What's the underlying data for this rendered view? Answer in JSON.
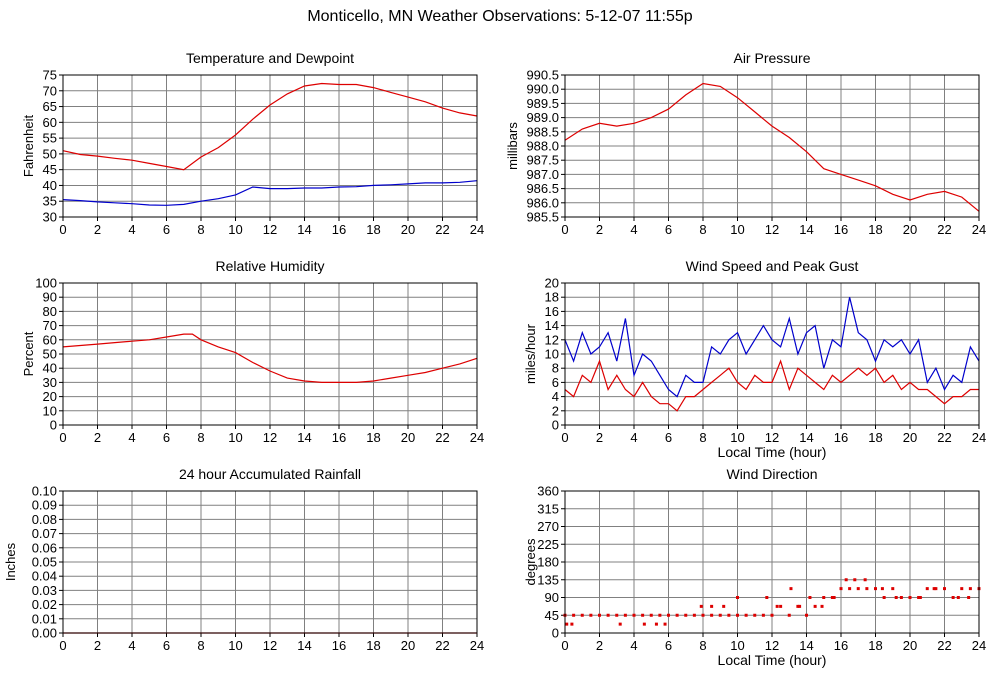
{
  "page": {
    "title": "Monticello, MN Weather Observations: 5-12-07 11:55p"
  },
  "colors": {
    "primary_series": "#dd0000",
    "secondary_series": "#0000cc",
    "grid": "#808080",
    "frame": "#000000"
  },
  "chart_data": [
    {
      "id": "temperature",
      "type": "line",
      "title": "Temperature and Dewpoint",
      "xlabel": "",
      "ylabel": "Fahrenheit",
      "xlim": [
        0,
        24
      ],
      "ylim": [
        30,
        75
      ],
      "xticks": [
        "0",
        "2",
        "4",
        "6",
        "8",
        "10",
        "12",
        "14",
        "16",
        "18",
        "20",
        "22",
        "24"
      ],
      "yticks": [
        "30",
        "35",
        "40",
        "45",
        "50",
        "55",
        "60",
        "65",
        "70",
        "75"
      ],
      "grid": true,
      "series": [
        {
          "color": "#dd0000",
          "x": [
            0,
            1,
            2,
            3,
            4,
            5,
            6,
            7,
            8,
            9,
            10,
            11,
            12,
            13,
            14,
            15,
            16,
            17,
            18,
            19,
            20,
            21,
            22,
            23,
            24
          ],
          "y": [
            51,
            49.8,
            49.3,
            48.6,
            48,
            47,
            46,
            45,
            49,
            52,
            56,
            61,
            65.5,
            69,
            71.5,
            72.3,
            72,
            72,
            71,
            69.5,
            68,
            66.5,
            64.5,
            63,
            62
          ]
        },
        {
          "color": "#0000cc",
          "x": [
            0,
            1,
            2,
            3,
            4,
            5,
            6,
            7,
            8,
            9,
            10,
            11,
            12,
            13,
            14,
            15,
            16,
            17,
            18,
            19,
            20,
            21,
            22,
            23,
            24
          ],
          "y": [
            35.5,
            35.2,
            34.8,
            34.5,
            34.2,
            33.8,
            33.7,
            34,
            35,
            35.8,
            37,
            39.5,
            39,
            39,
            39.2,
            39.2,
            39.5,
            39.6,
            40,
            40.2,
            40.5,
            40.8,
            40.8,
            41,
            41.5
          ]
        }
      ]
    },
    {
      "id": "pressure",
      "type": "line",
      "title": "Air Pressure",
      "xlabel": "",
      "ylabel": "millibars",
      "xlim": [
        0,
        24
      ],
      "ylim": [
        985.5,
        990.5
      ],
      "xticks": [
        "0",
        "2",
        "4",
        "6",
        "8",
        "10",
        "12",
        "14",
        "16",
        "18",
        "20",
        "22",
        "24"
      ],
      "yticks": [
        "985.5",
        "986.0",
        "986.5",
        "987.0",
        "987.5",
        "988.0",
        "988.5",
        "989.0",
        "989.5",
        "990.0",
        "990.5"
      ],
      "grid": true,
      "series": [
        {
          "color": "#dd0000",
          "x": [
            0,
            1,
            2,
            3,
            4,
            5,
            6,
            7,
            8,
            9,
            10,
            11,
            12,
            13,
            14,
            15,
            16,
            17,
            18,
            19,
            20,
            21,
            22,
            23,
            24
          ],
          "y": [
            988.2,
            988.6,
            988.8,
            988.7,
            988.8,
            989.0,
            989.3,
            989.8,
            990.2,
            990.1,
            989.7,
            989.2,
            988.7,
            988.3,
            987.8,
            987.2,
            987.0,
            986.8,
            986.6,
            986.3,
            986.1,
            986.3,
            986.4,
            986.2,
            985.7
          ]
        }
      ]
    },
    {
      "id": "humidity",
      "type": "line",
      "title": "Relative Humidity",
      "xlabel": "",
      "ylabel": "Percent",
      "xlim": [
        0,
        24
      ],
      "ylim": [
        0,
        100
      ],
      "xticks": [
        "0",
        "2",
        "4",
        "6",
        "8",
        "10",
        "12",
        "14",
        "16",
        "18",
        "20",
        "22",
        "24"
      ],
      "yticks": [
        "0",
        "10",
        "20",
        "30",
        "40",
        "50",
        "60",
        "70",
        "80",
        "90",
        "100"
      ],
      "grid": true,
      "series": [
        {
          "color": "#dd0000",
          "x": [
            0,
            1,
            2,
            3,
            4,
            5,
            6,
            7,
            7.5,
            8,
            9,
            10,
            11,
            12,
            13,
            14,
            15,
            16,
            17,
            18,
            19,
            20,
            21,
            22,
            23,
            24
          ],
          "y": [
            55,
            56,
            57,
            58,
            59,
            60,
            62,
            64,
            64,
            60,
            55,
            51,
            44,
            38,
            33,
            31,
            30,
            30,
            30,
            31,
            33,
            35,
            37,
            40,
            43,
            47
          ]
        }
      ]
    },
    {
      "id": "wind_speed",
      "type": "line",
      "title": "Wind Speed and Peak Gust",
      "xlabel": "Local Time (hour)",
      "ylabel": "miles/hour",
      "xlim": [
        0,
        24
      ],
      "ylim": [
        0,
        20
      ],
      "xticks": [
        "0",
        "2",
        "4",
        "6",
        "8",
        "10",
        "12",
        "14",
        "16",
        "18",
        "20",
        "22",
        "24"
      ],
      "yticks": [
        "0",
        "2",
        "4",
        "6",
        "8",
        "10",
        "12",
        "14",
        "16",
        "18",
        "20"
      ],
      "grid": true,
      "series": [
        {
          "color": "#0000cc",
          "x": [
            0,
            0.5,
            1,
            1.5,
            2,
            2.5,
            3,
            3.5,
            4,
            4.5,
            5,
            5.5,
            6,
            6.5,
            7,
            7.5,
            8,
            8.5,
            9,
            9.5,
            10,
            10.5,
            11,
            11.5,
            12,
            12.5,
            13,
            13.5,
            14,
            14.5,
            15,
            15.5,
            16,
            16.5,
            17,
            17.5,
            18,
            18.5,
            19,
            19.5,
            20,
            20.5,
            21,
            21.5,
            22,
            22.5,
            23,
            23.5,
            24
          ],
          "y": [
            12,
            9,
            13,
            10,
            11,
            13,
            9,
            15,
            7,
            10,
            9,
            7,
            5,
            4,
            7,
            6,
            6,
            11,
            10,
            12,
            13,
            10,
            12,
            14,
            12,
            11,
            15,
            10,
            13,
            14,
            8,
            12,
            11,
            18,
            13,
            12,
            9,
            12,
            11,
            12,
            10,
            12,
            6,
            8,
            5,
            7,
            6,
            11,
            9
          ]
        },
        {
          "color": "#dd0000",
          "x": [
            0,
            0.5,
            1,
            1.5,
            2,
            2.5,
            3,
            3.5,
            4,
            4.5,
            5,
            5.5,
            6,
            6.5,
            7,
            7.5,
            8,
            8.5,
            9,
            9.5,
            10,
            10.5,
            11,
            11.5,
            12,
            12.5,
            13,
            13.5,
            14,
            14.5,
            15,
            15.5,
            16,
            16.5,
            17,
            17.5,
            18,
            18.5,
            19,
            19.5,
            20,
            20.5,
            21,
            21.5,
            22,
            22.5,
            23,
            23.5,
            24
          ],
          "y": [
            5,
            4,
            7,
            6,
            9,
            5,
            7,
            5,
            4,
            6,
            4,
            3,
            3,
            2,
            4,
            4,
            5,
            6,
            7,
            8,
            6,
            5,
            7,
            6,
            6,
            9,
            5,
            8,
            7,
            6,
            5,
            7,
            6,
            7,
            8,
            7,
            8,
            6,
            7,
            5,
            6,
            5,
            5,
            4,
            3,
            4,
            4,
            5,
            5
          ]
        }
      ]
    },
    {
      "id": "rainfall",
      "type": "line",
      "title": "24 hour Accumulated Rainfall",
      "xlabel": "",
      "ylabel": "Inches",
      "xlim": [
        0,
        24
      ],
      "ylim": [
        0,
        0.1
      ],
      "xticks": [
        "0",
        "2",
        "4",
        "6",
        "8",
        "10",
        "12",
        "14",
        "16",
        "18",
        "20",
        "22",
        "24"
      ],
      "yticks": [
        "0.00",
        "0.01",
        "0.02",
        "0.03",
        "0.04",
        "0.05",
        "0.06",
        "0.07",
        "0.08",
        "0.09",
        "0.10"
      ],
      "grid": true,
      "series": [
        {
          "color": "#dd0000",
          "x": [
            0,
            24
          ],
          "y": [
            0,
            0
          ]
        }
      ]
    },
    {
      "id": "wind_direction",
      "type": "scatter",
      "title": "Wind Direction",
      "xlabel": "Local Time (hour)",
      "ylabel": "degrees",
      "xlim": [
        0,
        24
      ],
      "ylim": [
        0,
        360
      ],
      "xticks": [
        "0",
        "2",
        "4",
        "6",
        "8",
        "10",
        "12",
        "14",
        "16",
        "18",
        "20",
        "22",
        "24"
      ],
      "yticks": [
        "0",
        "45",
        "90",
        "135",
        "180",
        "225",
        "270",
        "315",
        "360"
      ],
      "grid": true,
      "series": [
        {
          "color": "#dd0000",
          "x": [
            0,
            0.5,
            1,
            1.5,
            2,
            2.5,
            3,
            3.5,
            4,
            4.5,
            5,
            5.5,
            6,
            6.5,
            7,
            7.5,
            8,
            8.5,
            9,
            9.5,
            10,
            10.5,
            11,
            11.5,
            12,
            12.5,
            13,
            13.5,
            14,
            14.5,
            15,
            15.5,
            16,
            16.5,
            17,
            17.5,
            18,
            18.5,
            19,
            19.5,
            20,
            20.5,
            21,
            21.5,
            22,
            22.5,
            23,
            23.5,
            24,
            0.1,
            0.4,
            3.2,
            4.6,
            5.3,
            5.8,
            7.9,
            8.5,
            9.2,
            10,
            11.7,
            12.3,
            13.1,
            13.6,
            14.2,
            14.9,
            15.6,
            16.3,
            16.8,
            17.4,
            18.4,
            19.2,
            20.6,
            21.4,
            22.8,
            23.4
          ],
          "y": [
            45,
            45,
            45,
            45,
            45,
            45,
            45,
            45,
            45,
            45,
            45,
            45,
            45,
            45,
            45,
            45,
            45,
            45,
            45,
            45,
            45,
            45,
            45,
            45,
            45,
            67.5,
            45,
            67.5,
            45,
            67.5,
            90,
            90,
            112.5,
            112.5,
            112.5,
            112.5,
            112.5,
            90,
            112.5,
            90,
            90,
            90,
            112.5,
            112.5,
            112.5,
            90,
            112.5,
            112.5,
            112.5,
            22.5,
            22.5,
            22.5,
            22.5,
            22.5,
            22.5,
            67.5,
            67.5,
            67.5,
            90,
            90,
            67.5,
            112.5,
            67.5,
            90,
            67.5,
            90,
            135,
            135,
            135,
            112.5,
            90,
            90,
            112.5,
            90,
            90
          ]
        }
      ]
    }
  ]
}
